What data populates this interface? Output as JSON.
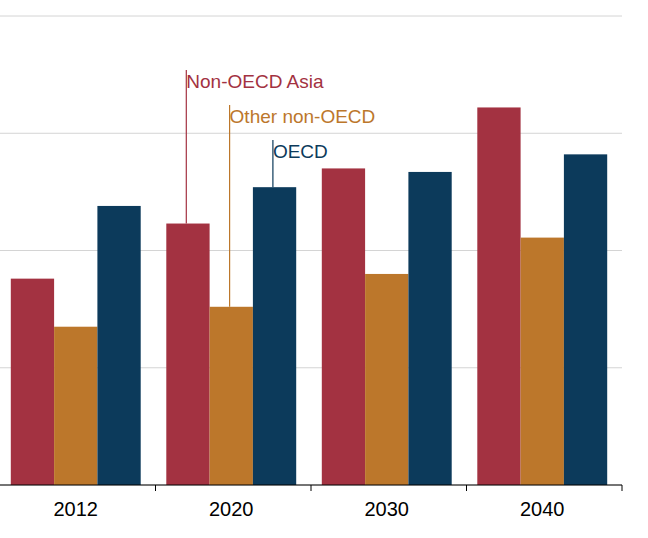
{
  "chart_data": {
    "type": "bar",
    "categories": [
      "2012",
      "2020",
      "2030",
      "2040"
    ],
    "series": [
      {
        "name": "Non-OECD Asia",
        "color": "#a33241",
        "values": [
          1.76,
          2.23,
          2.7,
          3.22
        ]
      },
      {
        "name": "Other non-OECD",
        "color": "#bc772b",
        "values": [
          1.35,
          1.52,
          1.8,
          2.11
        ]
      },
      {
        "name": "OECD",
        "color": "#0c3a5b",
        "values": [
          2.38,
          2.54,
          2.67,
          2.82
        ]
      }
    ],
    "ylim": [
      0,
      4
    ],
    "yticks": [
      0,
      1,
      2,
      3,
      4
    ],
    "grid": true,
    "tick_labels": "x"
  }
}
